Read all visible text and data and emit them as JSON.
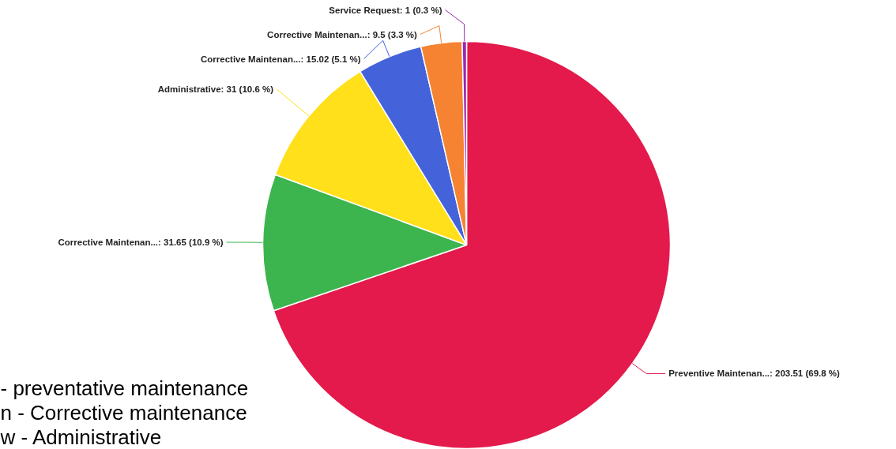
{
  "chart_data": {
    "type": "pie",
    "categories": [
      "Preventive Maintenan...",
      "Corrective Maintenan...",
      "Administrative",
      "Corrective Maintenan...",
      "Corrective Maintenan...",
      "Service Request"
    ],
    "values": [
      203.51,
      31.65,
      31,
      15.02,
      9.5,
      1
    ],
    "colors": [
      "#e31a4b",
      "#3db54e",
      "#ffe01a",
      "#4463db",
      "#f58331",
      "#9b27b0"
    ],
    "value_labels": [
      "203.51 (69.8 %)",
      "31.65 (10.9 %)",
      "31 (10.6 %)",
      "15.02 (5.1 %)",
      "9.5 (3.3 %)",
      "1 (0.3 %)"
    ],
    "annotations": [
      "- preventative maintenance",
      "n - Corrective maintenance",
      "w - Administrative"
    ]
  }
}
